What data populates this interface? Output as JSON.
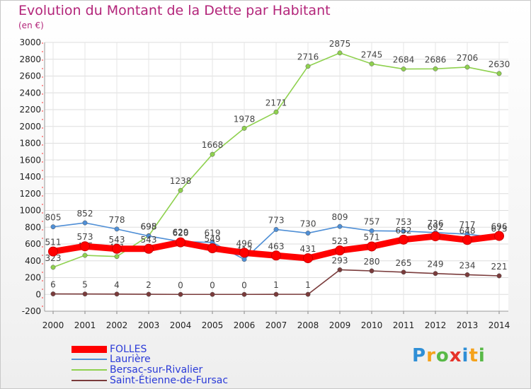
{
  "chart_data": {
    "type": "line",
    "title": "Evolution du Montant de la Dette par Habitant",
    "subtitle": "(en €)",
    "ylim": [
      -200,
      3000
    ],
    "yticks": [
      -200,
      0,
      200,
      400,
      600,
      800,
      1000,
      1200,
      1400,
      1600,
      1800,
      2000,
      2200,
      2400,
      2600,
      2800,
      3000
    ],
    "x": [
      "2000",
      "2001",
      "2002",
      "2003",
      "2004",
      "2005",
      "2006",
      "2007",
      "2008",
      "2009",
      "2010",
      "2011",
      "2012",
      "2013",
      "2014"
    ],
    "series": [
      {
        "name": "Saint-Étienne-de-Fursac",
        "color": "#7a3b3b",
        "values": [
          6,
          5,
          4,
          2,
          0,
          0,
          0,
          1,
          1,
          293,
          280,
          265,
          249,
          234,
          221
        ]
      },
      {
        "name": "Bersac-sur-Rivalier",
        "color": "#8fd14f",
        "values": [
          323,
          465,
          451,
          698,
          1238,
          1668,
          1978,
          2171,
          2716,
          2875,
          2745,
          2684,
          2686,
          2706,
          2630
        ]
      },
      {
        "name": "Laurière",
        "color": "#4f8fd6",
        "values": [
          805,
          852,
          778,
          695,
          629,
          619,
          417,
          773,
          730,
          809,
          757,
          753,
          736,
          717,
          673
        ]
      },
      {
        "name": "FOLLES",
        "color": "#ff0000",
        "values": [
          511,
          573,
          543,
          543,
          620,
          549,
          496,
          463,
          431,
          523,
          571,
          652,
          692,
          648,
          696
        ]
      }
    ],
    "legend": [
      "FOLLES",
      "Laurière",
      "Bersac-sur-Rivalier",
      "Saint-Étienne-de-Fursac"
    ],
    "legend_colors": [
      "#ff0000",
      "#4f8fd6",
      "#8fd14f",
      "#7a3b3b"
    ]
  },
  "logo": {
    "text": "Proxiti",
    "colors": [
      "#2f8fd6",
      "#f5a21b",
      "#58b947",
      "#e6332a",
      "#2f8fd6",
      "#f5a21b",
      "#58b947"
    ]
  }
}
